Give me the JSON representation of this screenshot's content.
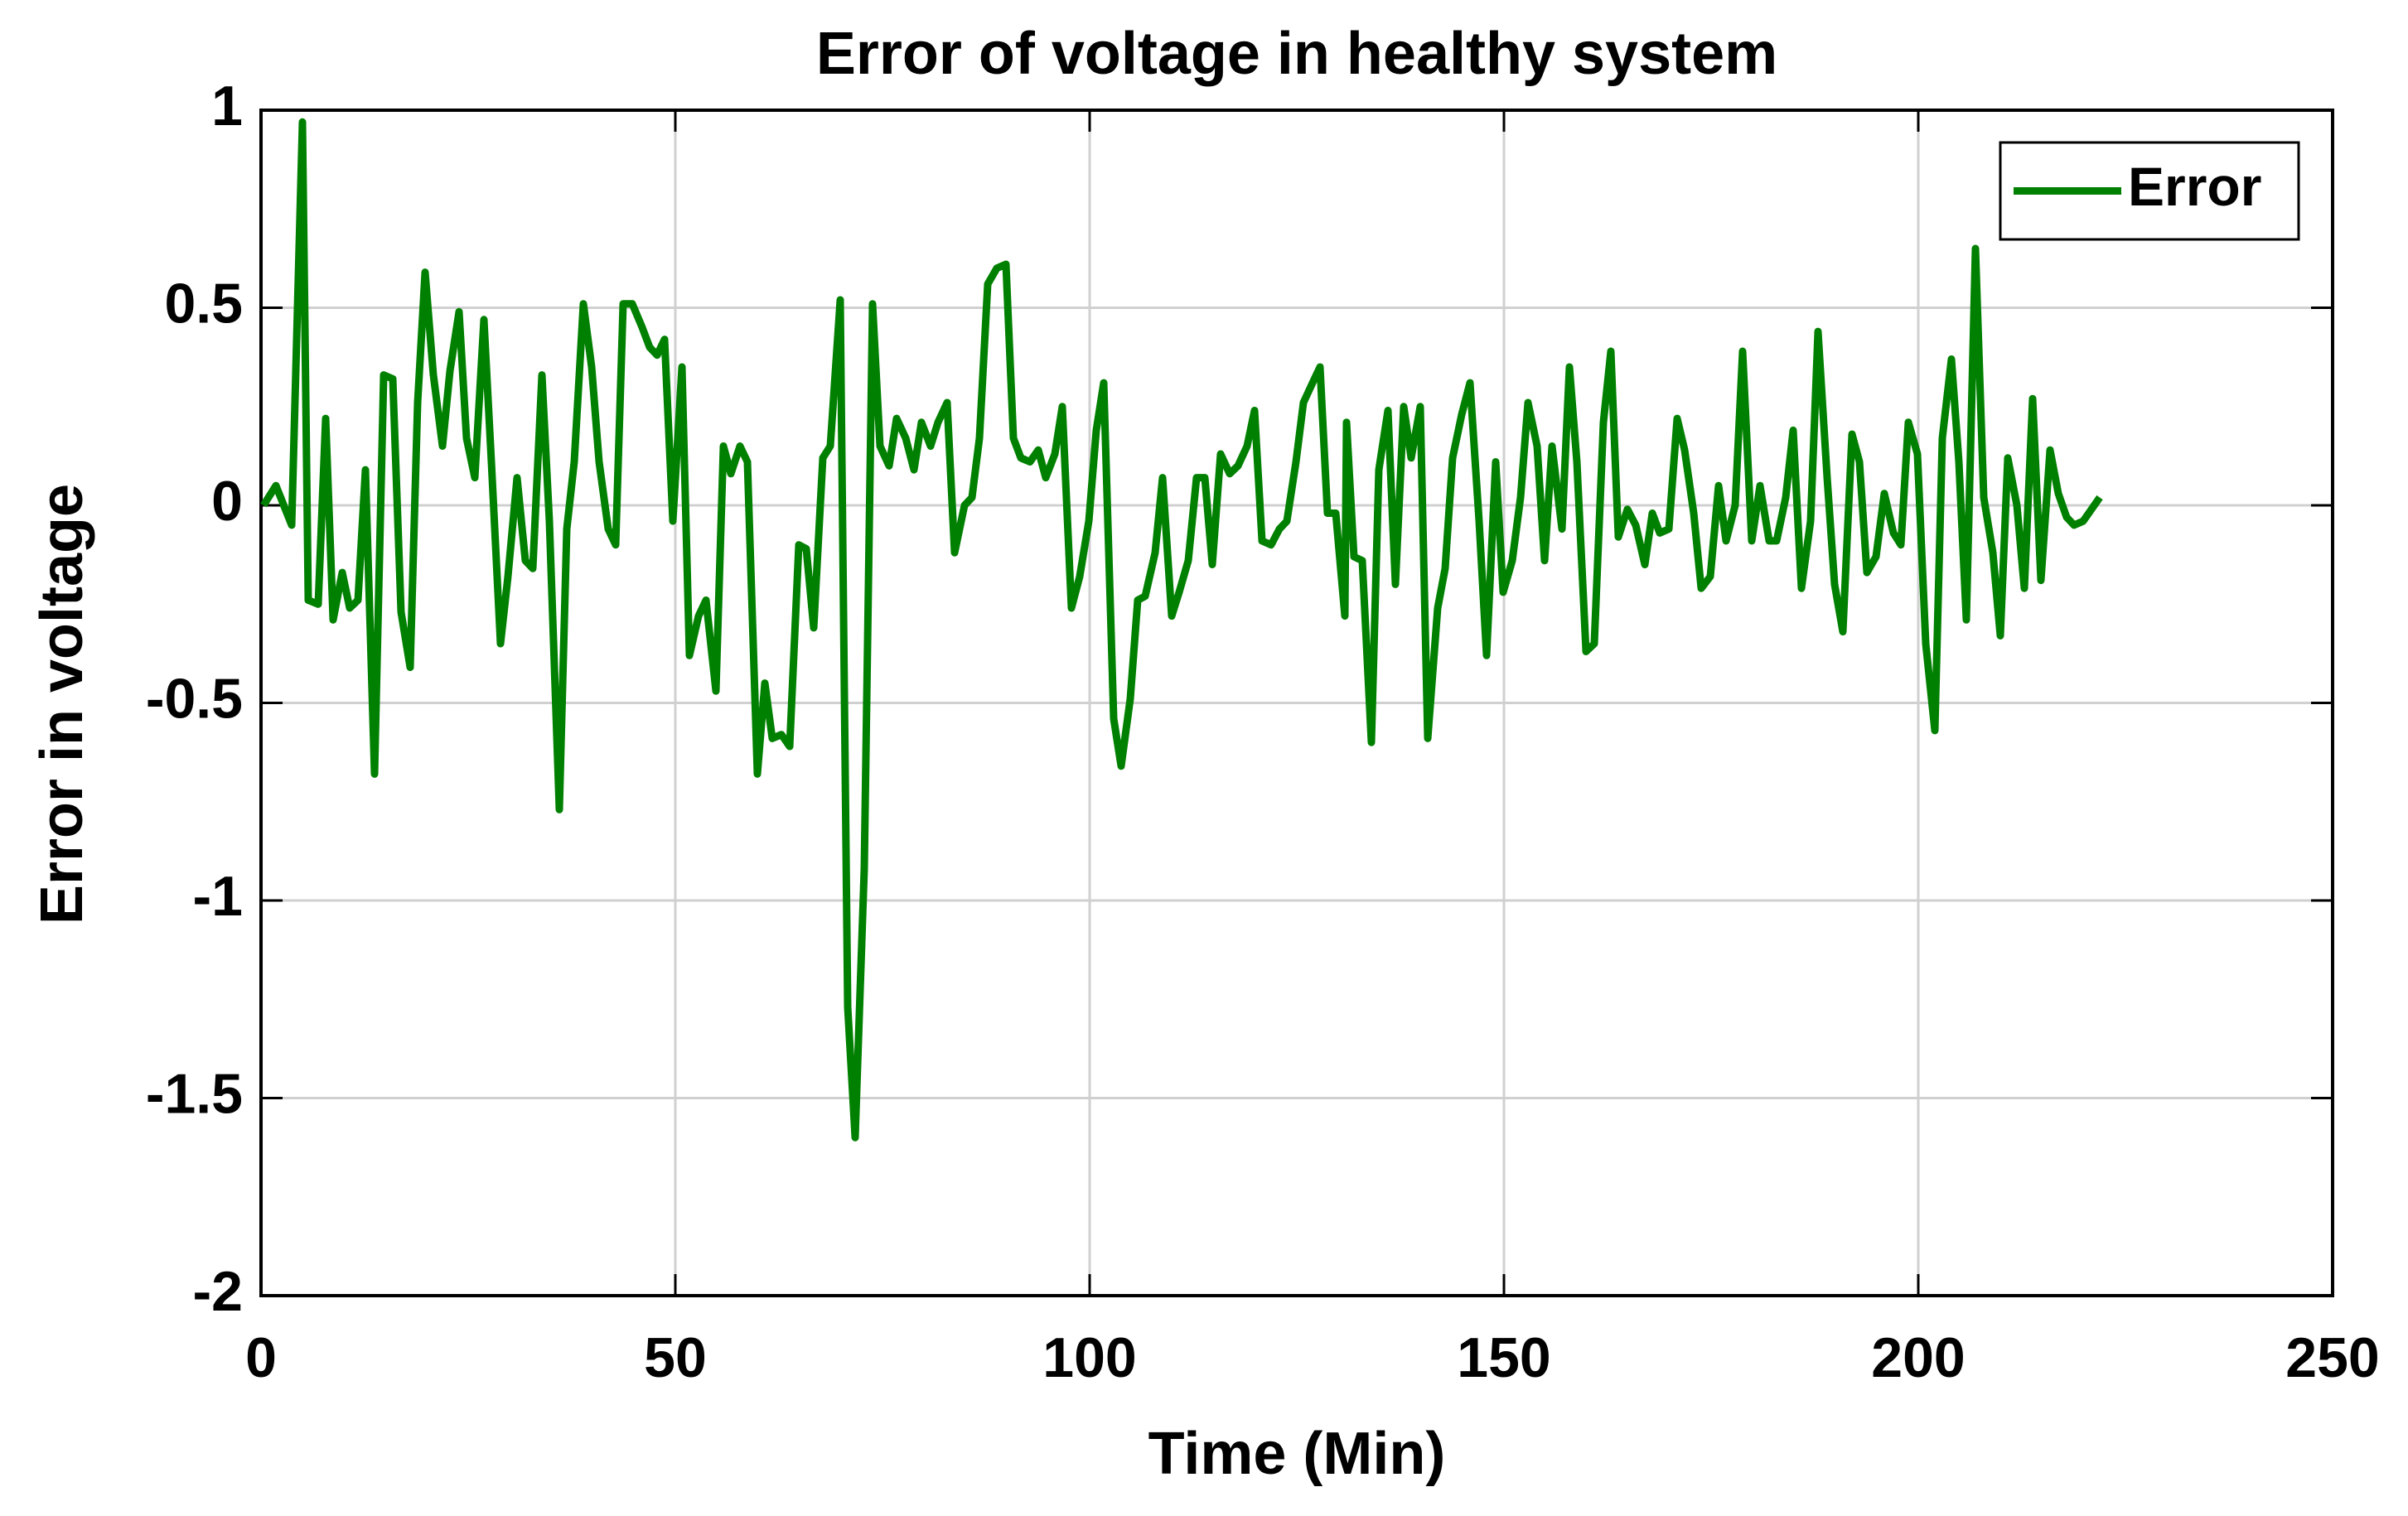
{
  "chart_data": {
    "type": "line",
    "title": "Error of voltage in healthy system",
    "x_label": "Time (Min)",
    "y_label": "Error in voltage",
    "xlim": [
      0,
      250
    ],
    "xticks": [
      0,
      50,
      100,
      150,
      200,
      250
    ],
    "ylim": [
      -2,
      1
    ],
    "yticks": [
      -2,
      -1.5,
      -1,
      -0.5,
      0,
      0.5,
      1
    ],
    "grid": true,
    "legend": "northeast",
    "x": [
      0.3,
      1.8,
      3.7,
      5,
      5.7,
      6.9,
      7.8,
      8.7,
      9.8,
      10.7,
      11.7,
      12.6,
      13.7,
      14.8,
      15.9,
      16.9,
      18,
      18.9,
      19.8,
      20.8,
      21.9,
      22.8,
      23.9,
      24.8,
      25.8,
      26.9,
      27.8,
      28.9,
      29.8,
      30.9,
      31.9,
      32.8,
      33.9,
      34.8,
      36,
      36.9,
      37.8,
      38.9,
      39.9,
      40.8,
      41.9,
      42.8,
      43.7,
      44.8,
      46,
      46.9,
      47.8,
      48.7,
      49.7,
      50.8,
      51.7,
      52.8,
      53.7,
      54.9,
      55.8,
      56.7,
      57.8,
      58.7,
      59.9,
      60.8,
      61.7,
      62.8,
      63.8,
      64.9,
      65.8,
      66.7,
      67.8,
      68.7,
      69.9,
      70.8,
      71.7,
      72.8,
      73.8,
      74.7,
      75.8,
      76.7,
      77.8,
      78.8,
      79.7,
      80.8,
      81.7,
      82.8,
      83.7,
      84.9,
      85.8,
      86.7,
      87.7,
      88.8,
      89.9,
      90.8,
      91.7,
      92.8,
      93.8,
      94.7,
      95.8,
      96.7,
      97.8,
      98.8,
      99.9,
      100.8,
      101.7,
      102.9,
      103.8,
      104.9,
      105.8,
      106.7,
      107.9,
      108.8,
      109.9,
      110.8,
      111.9,
      112.9,
      113.9,
      114.8,
      115.8,
      116.9,
      117.9,
      119,
      119.9,
      120.8,
      121.9,
      122.9,
      123.8,
      124.9,
      125.8,
      126.9,
      127.8,
      128.7,
      129.7,
      130.8,
      131,
      131.9,
      132.9,
      134,
      134.9,
      136,
      136.9,
      137.9,
      138.8,
      139.9,
      140.8,
      142,
      142.9,
      143.8,
      144.9,
      145.9,
      147,
      147.9,
      149,
      149.9,
      151,
      152,
      152.9,
      154,
      154.9,
      155.8,
      157,
      157.9,
      158.8,
      159.9,
      160.9,
      162,
      162.9,
      163.8,
      164.9,
      165.9,
      167,
      167.9,
      168.8,
      169.9,
      170.9,
      171.8,
      172.9,
      173.8,
      174.9,
      175.9,
      176.8,
      177.9,
      178.8,
      179.9,
      180.9,
      182,
      182.9,
      184,
      184.9,
      185.9,
      187,
      187.9,
      189,
      189.9,
      190.9,
      192,
      192.9,
      193.8,
      194.9,
      195.9,
      197,
      197.9,
      198.8,
      199.9,
      200.9,
      202,
      202.9,
      204,
      204.9,
      205.8,
      206.9,
      207.9,
      209,
      209.9,
      210.8,
      211.9,
      212.8,
      213.8,
      214.8,
      215.9,
      216.9,
      217.9,
      218.8,
      219.9,
      220.9,
      221.9
    ],
    "series": [
      {
        "name": "Error",
        "color": "#008000",
        "values": [
          0,
          0.05,
          -0.05,
          0.97,
          -0.24,
          -0.25,
          0.22,
          -0.29,
          -0.17,
          -0.26,
          -0.24,
          0.09,
          -0.68,
          0.33,
          0.32,
          -0.27,
          -0.41,
          0.26,
          0.59,
          0.33,
          0.15,
          0.34,
          0.49,
          0.17,
          0.07,
          0.47,
          0.11,
          -0.35,
          -0.18,
          0.07,
          -0.14,
          -0.16,
          0.33,
          -0.04,
          -0.77,
          -0.06,
          0.11,
          0.51,
          0.35,
          0.11,
          -0.06,
          -0.1,
          0.51,
          0.51,
          0.45,
          0.4,
          0.38,
          0.42,
          -0.04,
          0.35,
          -0.38,
          -0.28,
          -0.24,
          -0.47,
          0.15,
          0.08,
          0.15,
          0.11,
          -0.68,
          -0.45,
          -0.59,
          -0.58,
          -0.61,
          -0.1,
          -0.11,
          -0.31,
          0.12,
          0.15,
          0.52,
          -1.27,
          -1.6,
          -0.92,
          0.51,
          0.15,
          0.1,
          0.22,
          0.17,
          0.09,
          0.21,
          0.15,
          0.21,
          0.26,
          -0.12,
          0,
          0.02,
          0.17,
          0.56,
          0.6,
          0.61,
          0.17,
          0.12,
          0.11,
          0.14,
          0.07,
          0.13,
          0.25,
          -0.26,
          -0.18,
          -0.04,
          0.19,
          0.31,
          -0.54,
          -0.66,
          -0.49,
          -0.24,
          -0.23,
          -0.12,
          0.07,
          -0.28,
          -0.22,
          -0.14,
          0.07,
          0.07,
          -0.15,
          0.13,
          0.08,
          0.1,
          0.15,
          0.24,
          -0.09,
          -0.1,
          -0.06,
          -0.04,
          0.11,
          0.26,
          0.31,
          0.35,
          -0.02,
          -0.02,
          -0.28,
          0.21,
          -0.13,
          -0.14,
          -0.6,
          0.09,
          0.24,
          -0.2,
          0.25,
          0.12,
          0.25,
          -0.59,
          -0.26,
          -0.16,
          0.12,
          0.23,
          0.31,
          -0.04,
          -0.38,
          0.11,
          -0.22,
          -0.14,
          0.02,
          0.26,
          0.15,
          -0.14,
          0.15,
          -0.06,
          0.35,
          0.11,
          -0.37,
          -0.35,
          0.21,
          0.39,
          -0.08,
          -0.01,
          -0.05,
          -0.15,
          -0.02,
          -0.07,
          -0.06,
          0.22,
          0.14,
          -0.02,
          -0.21,
          -0.18,
          0.05,
          -0.09,
          0,
          0.39,
          -0.09,
          0.05,
          -0.09,
          -0.09,
          0.02,
          0.19,
          -0.21,
          -0.04,
          0.44,
          0.07,
          -0.2,
          -0.32,
          0.18,
          0.11,
          -0.17,
          -0.13,
          0.03,
          -0.07,
          -0.1,
          0.21,
          0.13,
          -0.35,
          -0.57,
          0.17,
          0.37,
          0.11,
          -0.29,
          0.65,
          0.02,
          -0.12,
          -0.33,
          0.12,
          0,
          -0.21,
          0.27,
          -0.19,
          0.14,
          0.03,
          -0.03,
          -0.05,
          -0.04,
          -0.01,
          0.02
        ]
      }
    ]
  }
}
